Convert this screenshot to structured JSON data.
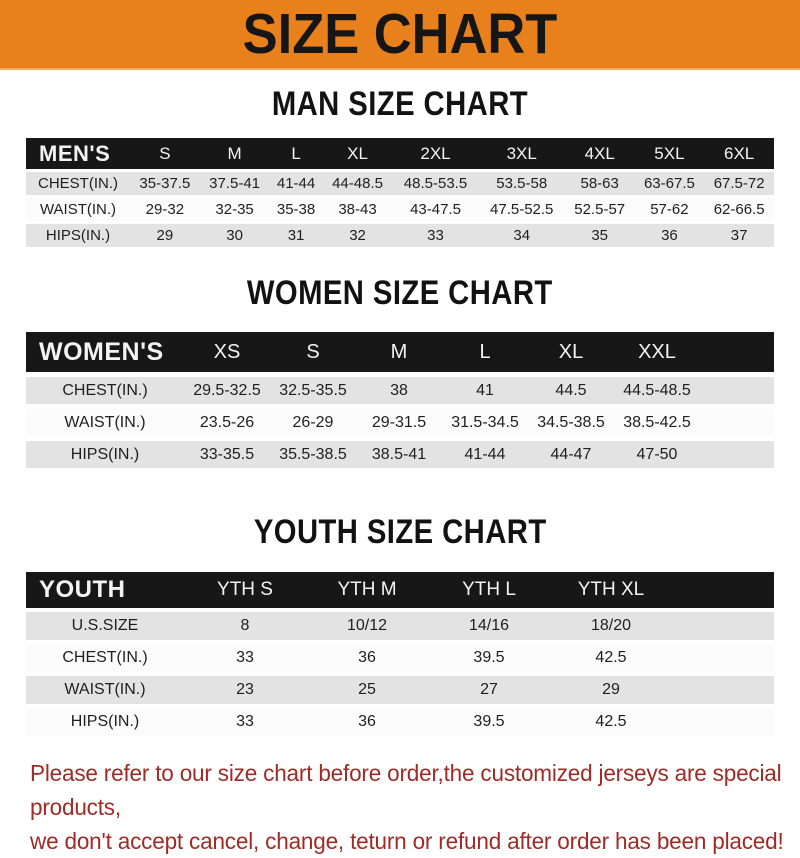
{
  "banner": {
    "title": "SIZE CHART"
  },
  "colors": {
    "banner_orange": "#E8811C",
    "header_black": "#171717",
    "row_gray": "#e3e3e3",
    "row_white": "#fbfbfb",
    "note_red": "#9E2B26"
  },
  "sections": [
    {
      "heading": "MAN SIZE CHART",
      "table": {
        "header_label": "MEN'S",
        "columns": [
          "S",
          "M",
          "L",
          "XL",
          "2XL",
          "3XL",
          "4XL",
          "5XL",
          "6XL"
        ],
        "rows": [
          {
            "label": "CHEST(IN.)",
            "values": [
              "35-37.5",
              "37.5-41",
              "41-44",
              "44-48.5",
              "48.5-53.5",
              "53.5-58",
              "58-63",
              "63-67.5",
              "67.5-72"
            ]
          },
          {
            "label": "WAIST(IN.)",
            "values": [
              "29-32",
              "32-35",
              "35-38",
              "38-43",
              "43-47.5",
              "47.5-52.5",
              "52.5-57",
              "57-62",
              "62-66.5"
            ]
          },
          {
            "label": "HIPS(IN.)",
            "values": [
              "29",
              "30",
              "31",
              "32",
              "33",
              "34",
              "35",
              "36",
              "37"
            ]
          }
        ]
      }
    },
    {
      "heading": "WOMEN SIZE CHART",
      "table": {
        "header_label": "WOMEN'S",
        "columns": [
          "XS",
          "S",
          "M",
          "L",
          "XL",
          "XXL"
        ],
        "rows": [
          {
            "label": "CHEST(IN.)",
            "values": [
              "29.5-32.5",
              "32.5-35.5",
              "38",
              "41",
              "44.5",
              "44.5-48.5"
            ]
          },
          {
            "label": "WAIST(IN.)",
            "values": [
              "23.5-26",
              "26-29",
              "29-31.5",
              "31.5-34.5",
              "34.5-38.5",
              "38.5-42.5"
            ]
          },
          {
            "label": "HIPS(IN.)",
            "values": [
              "33-35.5",
              "35.5-38.5",
              "38.5-41",
              "41-44",
              "44-47",
              "47-50"
            ]
          }
        ]
      }
    },
    {
      "heading": "YOUTH SIZE CHART",
      "table": {
        "header_label": "YOUTH",
        "columns": [
          "YTH S",
          "YTH M",
          "YTH L",
          "YTH XL"
        ],
        "rows": [
          {
            "label": "U.S.SIZE",
            "values": [
              "8",
              "10/12",
              "14/16",
              "18/20"
            ]
          },
          {
            "label": "CHEST(IN.)",
            "values": [
              "33",
              "36",
              "39.5",
              "42.5"
            ]
          },
          {
            "label": "WAIST(IN.)",
            "values": [
              "23",
              "25",
              "27",
              "29"
            ]
          },
          {
            "label": "HIPS(IN.)",
            "values": [
              "33",
              "36",
              "39.5",
              "42.5"
            ]
          }
        ]
      }
    }
  ],
  "note": {
    "lines": [
      "Please refer to our size chart before order,the customized jerseys are special products,",
      "we don't accept cancel, change, teturn or refund after order has been placed!"
    ]
  }
}
